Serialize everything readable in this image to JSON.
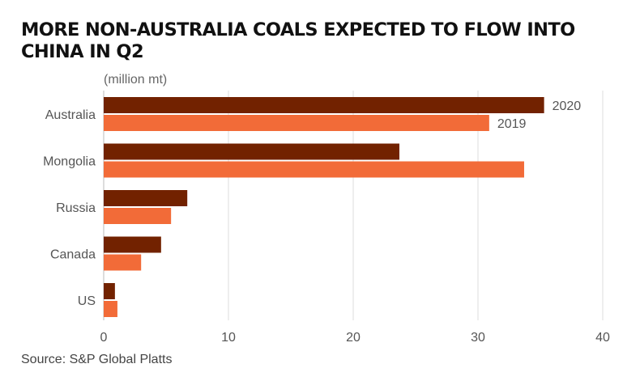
{
  "title": "MORE NON-AUSTRALIA COALS EXPECTED TO FLOW INTO CHINA IN Q2",
  "source": "Source: S&P Global Platts",
  "chart_data": {
    "type": "bar",
    "orientation": "horizontal",
    "title": "MORE NON-AUSTRALIA COALS EXPECTED TO FLOW INTO CHINA IN Q2",
    "unit_label": "(million mt)",
    "categories": [
      "Australia",
      "Mongolia",
      "Russia",
      "Canada",
      "US"
    ],
    "series": [
      {
        "name": "2020",
        "color": "#722200",
        "values": [
          35.3,
          23.7,
          6.7,
          4.6,
          0.9
        ]
      },
      {
        "name": "2019",
        "color": "#f26b38",
        "values": [
          30.9,
          33.7,
          5.4,
          3.0,
          1.1
        ]
      }
    ],
    "xlim": [
      0,
      40
    ],
    "xticks": [
      "0",
      "10",
      "20",
      "30",
      "40"
    ],
    "grid": "vertical",
    "legend": "inline labels on first category"
  }
}
